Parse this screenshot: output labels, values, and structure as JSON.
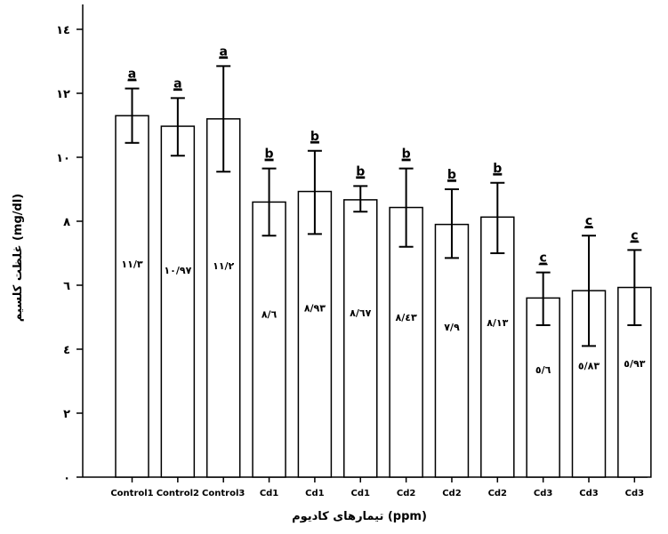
{
  "chart_data": {
    "type": "bar",
    "xlabel": "تیمارهای کادیوم (ppm)",
    "ylabel": "غلظت کلسیم (mg/dl)",
    "ylim": [
      0,
      14
    ],
    "yticks": [
      {
        "value": 0,
        "label": "۰"
      },
      {
        "value": 2,
        "label": "۲"
      },
      {
        "value": 4,
        "label": "٤"
      },
      {
        "value": 6,
        "label": "٦"
      },
      {
        "value": 8,
        "label": "٨"
      },
      {
        "value": 10,
        "label": "١٠"
      },
      {
        "value": 12,
        "label": "١٢"
      },
      {
        "value": 14,
        "label": "١٤"
      }
    ],
    "categories": [
      "Control1",
      "Control2",
      "Control3",
      "Cd1",
      "Cd1",
      "Cd1",
      "Cd2",
      "Cd2",
      "Cd2",
      "Cd3",
      "Cd3",
      "Cd3"
    ],
    "values": [
      11.3,
      10.97,
      11.2,
      8.6,
      8.93,
      8.67,
      8.43,
      7.9,
      8.13,
      5.6,
      5.83,
      5.93
    ],
    "value_labels": [
      "١١/٣",
      "١٠/٩٧",
      "١١/٢",
      "٨/٦",
      "٨/٩٣",
      "٨/٦٧",
      "٨/٤٣",
      "٧/٩",
      "٨/١٣",
      "٥/٦",
      "٥/٨٣",
      "٥/٩٣"
    ],
    "error_low": [
      10.45,
      10.05,
      9.55,
      7.55,
      7.6,
      8.3,
      7.2,
      6.85,
      7.0,
      4.75,
      4.1,
      4.75
    ],
    "error_high": [
      12.15,
      11.85,
      12.85,
      9.65,
      10.2,
      9.1,
      9.65,
      9.0,
      9.2,
      6.4,
      7.55,
      7.1
    ],
    "significance": [
      "a",
      "a",
      "a",
      "b",
      "b",
      "b",
      "b",
      "b",
      "b",
      "c",
      "c",
      "c"
    ],
    "grid": false
  }
}
